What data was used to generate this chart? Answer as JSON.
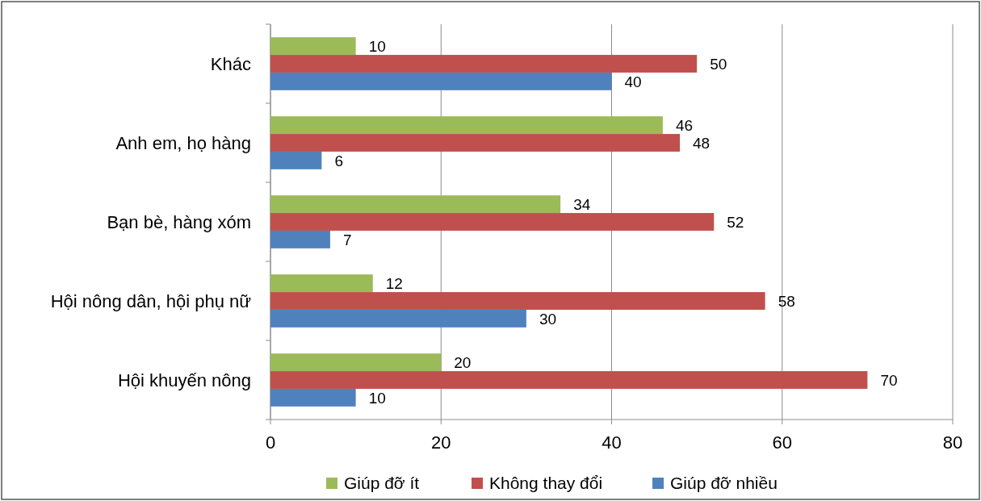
{
  "chart_data": {
    "type": "bar",
    "orientation": "horizontal",
    "categories": [
      "Khác",
      "Anh em, họ hàng",
      "Bạn bè, hàng xóm",
      "Hội nông dân, hội phụ nữ",
      "Hội khuyến nông"
    ],
    "series": [
      {
        "name": "Giúp đỡ ít",
        "color": "#9bbb59",
        "values": [
          10,
          46,
          34,
          12,
          20
        ]
      },
      {
        "name": "Không thay đổi",
        "color": "#c0504d",
        "values": [
          50,
          48,
          52,
          58,
          70
        ]
      },
      {
        "name": "Giúp đỡ nhiều",
        "color": "#4f81bd",
        "values": [
          40,
          6,
          7,
          30,
          10
        ]
      }
    ],
    "xlim": [
      0,
      80
    ],
    "xticks": [
      0,
      20,
      40,
      60,
      80
    ],
    "grid": "x",
    "legend": "bottom",
    "data_labels": true
  }
}
